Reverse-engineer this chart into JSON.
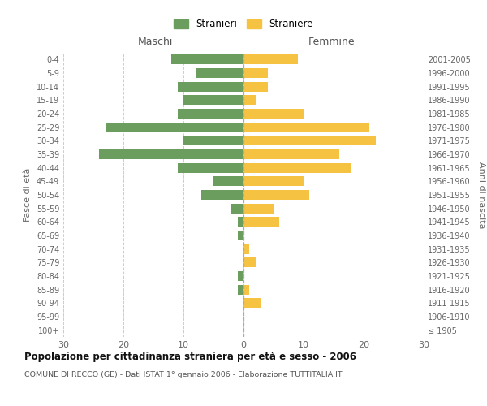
{
  "age_groups": [
    "100+",
    "95-99",
    "90-94",
    "85-89",
    "80-84",
    "75-79",
    "70-74",
    "65-69",
    "60-64",
    "55-59",
    "50-54",
    "45-49",
    "40-44",
    "35-39",
    "30-34",
    "25-29",
    "20-24",
    "15-19",
    "10-14",
    "5-9",
    "0-4"
  ],
  "birth_years": [
    "≤ 1905",
    "1906-1910",
    "1911-1915",
    "1916-1920",
    "1921-1925",
    "1926-1930",
    "1931-1935",
    "1936-1940",
    "1941-1945",
    "1946-1950",
    "1951-1955",
    "1956-1960",
    "1961-1965",
    "1966-1970",
    "1971-1975",
    "1976-1980",
    "1981-1985",
    "1986-1990",
    "1991-1995",
    "1996-2000",
    "2001-2005"
  ],
  "maschi": [
    0,
    0,
    0,
    1,
    1,
    0,
    0,
    1,
    1,
    2,
    7,
    5,
    11,
    24,
    10,
    23,
    11,
    10,
    11,
    8,
    12
  ],
  "femmine": [
    0,
    0,
    3,
    1,
    0,
    2,
    1,
    0,
    6,
    5,
    11,
    10,
    18,
    16,
    22,
    21,
    10,
    2,
    4,
    4,
    9
  ],
  "maschi_color": "#6b9e5e",
  "femmine_color": "#f5c242",
  "grid_color": "#cccccc",
  "xlim": 30,
  "title": "Popolazione per cittadinanza straniera per età e sesso - 2006",
  "subtitle": "COMUNE DI RECCO (GE) - Dati ISTAT 1° gennaio 2006 - Elaborazione TUTTITALIA.IT",
  "ylabel_left": "Fasce di età",
  "ylabel_right": "Anni di nascita",
  "label_maschi": "Maschi",
  "label_femmine": "Femmine",
  "legend_maschi": "Stranieri",
  "legend_femmine": "Straniere"
}
